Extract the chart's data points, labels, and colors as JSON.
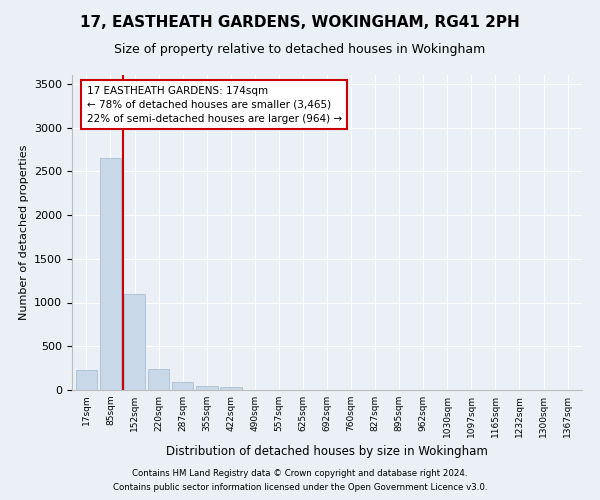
{
  "title": "17, EASTHEATH GARDENS, WOKINGHAM, RG41 2PH",
  "subtitle": "Size of property relative to detached houses in Wokingham",
  "xlabel": "Distribution of detached houses by size in Wokingham",
  "ylabel": "Number of detached properties",
  "bar_color": "#c8d8e8",
  "bar_edge_color": "#a0b8d0",
  "vline_color": "#cc0000",
  "vline_x": 1.5,
  "annotation_text": "17 EASTHEATH GARDENS: 174sqm\n← 78% of detached houses are smaller (3,465)\n22% of semi-detached houses are larger (964) →",
  "annotation_box_color": "white",
  "annotation_box_edge_color": "#cc0000",
  "categories": [
    "17sqm",
    "85sqm",
    "152sqm",
    "220sqm",
    "287sqm",
    "355sqm",
    "422sqm",
    "490sqm",
    "557sqm",
    "625sqm",
    "692sqm",
    "760sqm",
    "827sqm",
    "895sqm",
    "962sqm",
    "1030sqm",
    "1097sqm",
    "1165sqm",
    "1232sqm",
    "1300sqm",
    "1367sqm"
  ],
  "values": [
    230,
    2650,
    1100,
    240,
    90,
    50,
    35,
    0,
    0,
    0,
    0,
    0,
    0,
    0,
    0,
    0,
    0,
    0,
    0,
    0,
    0
  ],
  "ylim": [
    0,
    3600
  ],
  "yticks": [
    0,
    500,
    1000,
    1500,
    2000,
    2500,
    3000,
    3500
  ],
  "footer1": "Contains HM Land Registry data © Crown copyright and database right 2024.",
  "footer2": "Contains public sector information licensed under the Open Government Licence v3.0.",
  "background_color": "#eaf0f6",
  "plot_background": "#eaf0f6",
  "grid_color": "white",
  "title_fontsize": 11,
  "subtitle_fontsize": 9,
  "bar_width": 0.9
}
